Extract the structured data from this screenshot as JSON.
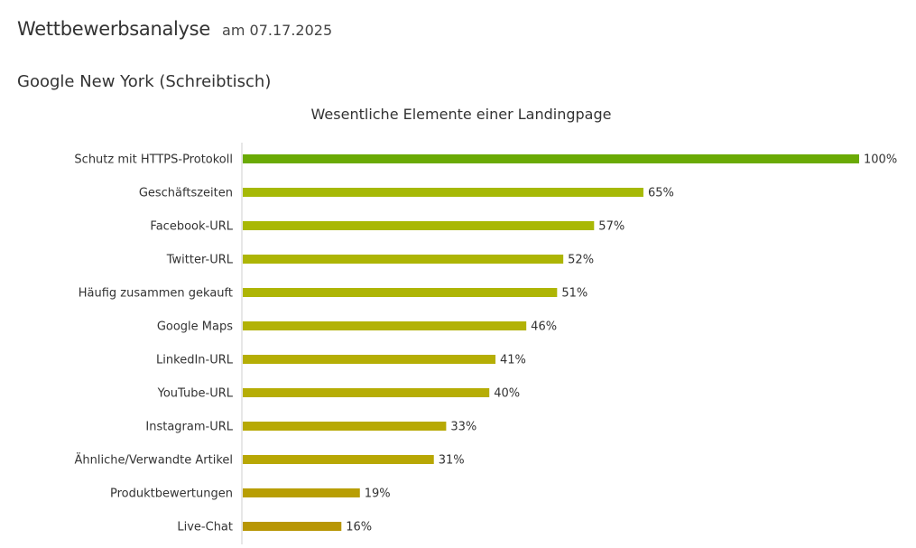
{
  "header": {
    "title": "Wettbewerbsanalyse",
    "date": "am 07.17.2025"
  },
  "subheading": "Google New York (Schreibtisch)",
  "chart_data": {
    "type": "bar",
    "orientation": "horizontal",
    "title": "Wesentliche Elemente einer Landingpage",
    "xlabel": "",
    "ylabel": "",
    "xlim": [
      0,
      100
    ],
    "value_suffix": "%",
    "grid": false,
    "categories": [
      "Schutz mit HTTPS-Protokoll",
      "Geschäftszeiten",
      "Facebook-URL",
      "Twitter-URL",
      "Häufig zusammen gekauft",
      "Google Maps",
      "LinkedIn-URL",
      "YouTube-URL",
      "Instagram-URL",
      "Ähnliche/Verwandte Artikel",
      "Produktbewertungen",
      "Live-Chat"
    ],
    "values": [
      100,
      65,
      57,
      52,
      51,
      46,
      41,
      40,
      33,
      31,
      19,
      16
    ],
    "colors": [
      "#6aaa05",
      "#a6b906",
      "#a9b805",
      "#adb505",
      "#aeb505",
      "#b2b206",
      "#b5ae05",
      "#b6ad05",
      "#b7a904",
      "#b8a704",
      "#b89e04",
      "#b89604"
    ]
  }
}
